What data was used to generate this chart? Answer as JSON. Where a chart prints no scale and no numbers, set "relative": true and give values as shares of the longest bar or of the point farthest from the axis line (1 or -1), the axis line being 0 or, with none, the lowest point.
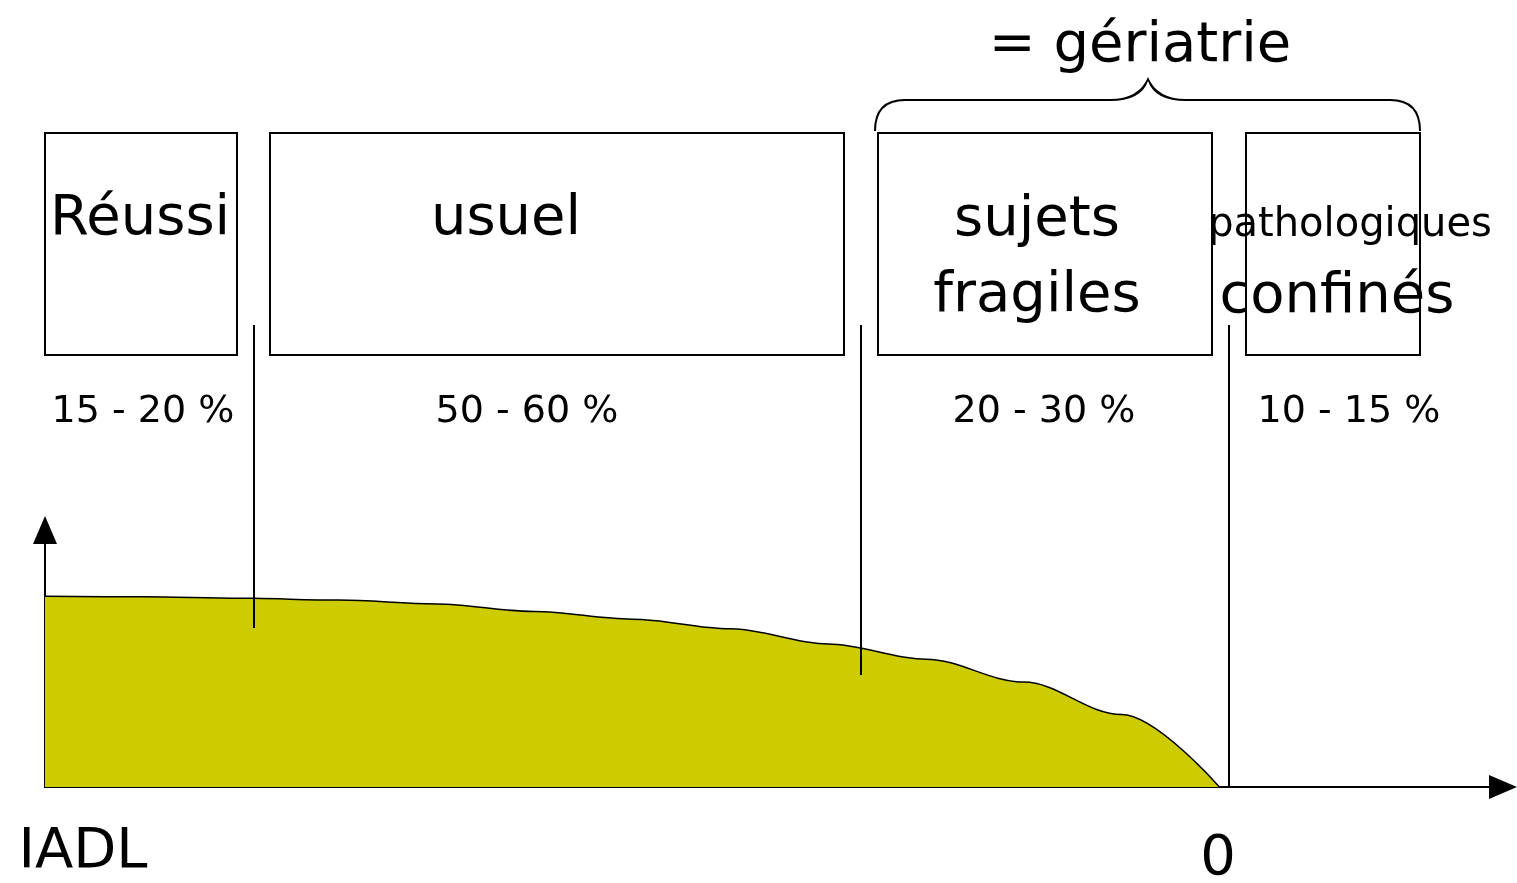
{
  "chart_data": {
    "type": "area",
    "relative": true,
    "color": "#cccc00",
    "categories": [
      null,
      null,
      null,
      null,
      null,
      null,
      null,
      null,
      null,
      null,
      null,
      null,
      null,
      null,
      null,
      null
    ],
    "values": [
      1.0,
      0.997,
      0.99,
      0.98,
      0.96,
      0.92,
      0.88,
      0.83,
      0.75,
      0.67,
      0.55,
      0.38,
      0,
      null,
      null,
      null
    ],
    "grid": false,
    "annotations": [
      "= gériatrie",
      "Réussi",
      "usuel",
      "sujets fragiles",
      "pathologiques",
      "confinés",
      "15 - 20 %",
      "50 - 60 %",
      "20 - 30 %",
      "10 - 15 %",
      "IADL",
      "0"
    ]
  }
}
